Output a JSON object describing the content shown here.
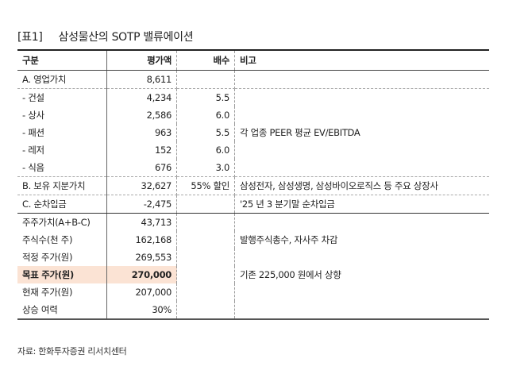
{
  "title": {
    "tag": "[표1]",
    "text": "삼성물산의 SOTP 밸류에이션"
  },
  "table": {
    "headers": [
      "구분",
      "평가액",
      "배수",
      "비고"
    ],
    "rows": [
      {
        "label": "A. 영업가치",
        "value": "8,611",
        "multiple": "",
        "note": ""
      },
      {
        "label": "- 건설",
        "value": "4,234",
        "multiple": "5.5",
        "note": ""
      },
      {
        "label": "- 상사",
        "value": "2,586",
        "multiple": "6.0",
        "note": ""
      },
      {
        "label": "- 패션",
        "value": "963",
        "multiple": "5.5",
        "note": "각 업종 PEER 평균 EV/EBITDA"
      },
      {
        "label": "- 레저",
        "value": "152",
        "multiple": "6.0",
        "note": ""
      },
      {
        "label": "- 식음",
        "value": "676",
        "multiple": "3.0",
        "note": ""
      },
      {
        "label": "B. 보유 지분가치",
        "value": "32,627",
        "multiple": "55% 할인",
        "note": "삼성전자, 삼성생명, 삼성바이오로직스 등 주요 상장사"
      },
      {
        "label": "C. 순차입금",
        "value": "-2,475",
        "multiple": "",
        "note": "'25 년 3 분기말 순차입금"
      },
      {
        "label": "주주가치(A+B-C)",
        "value": "43,713",
        "multiple": "",
        "note": ""
      },
      {
        "label": "주식수(천 주)",
        "value": "162,168",
        "multiple": "",
        "note": "발행주식총수, 자사주 차감"
      },
      {
        "label": "적정 주가(원)",
        "value": "269,553",
        "multiple": "",
        "note": ""
      },
      {
        "label": "목표 주가(원)",
        "value": "270,000",
        "multiple": "",
        "note": "기존 225,000 원에서 상향"
      },
      {
        "label": "현재 주가(원)",
        "value": "207,000",
        "multiple": "",
        "note": ""
      },
      {
        "label": "상승 여력",
        "value": "30%",
        "multiple": "",
        "note": ""
      }
    ]
  },
  "source": "자료: 한화투자증권 리서치센터",
  "colors": {
    "highlight": "#fbe3d4"
  }
}
